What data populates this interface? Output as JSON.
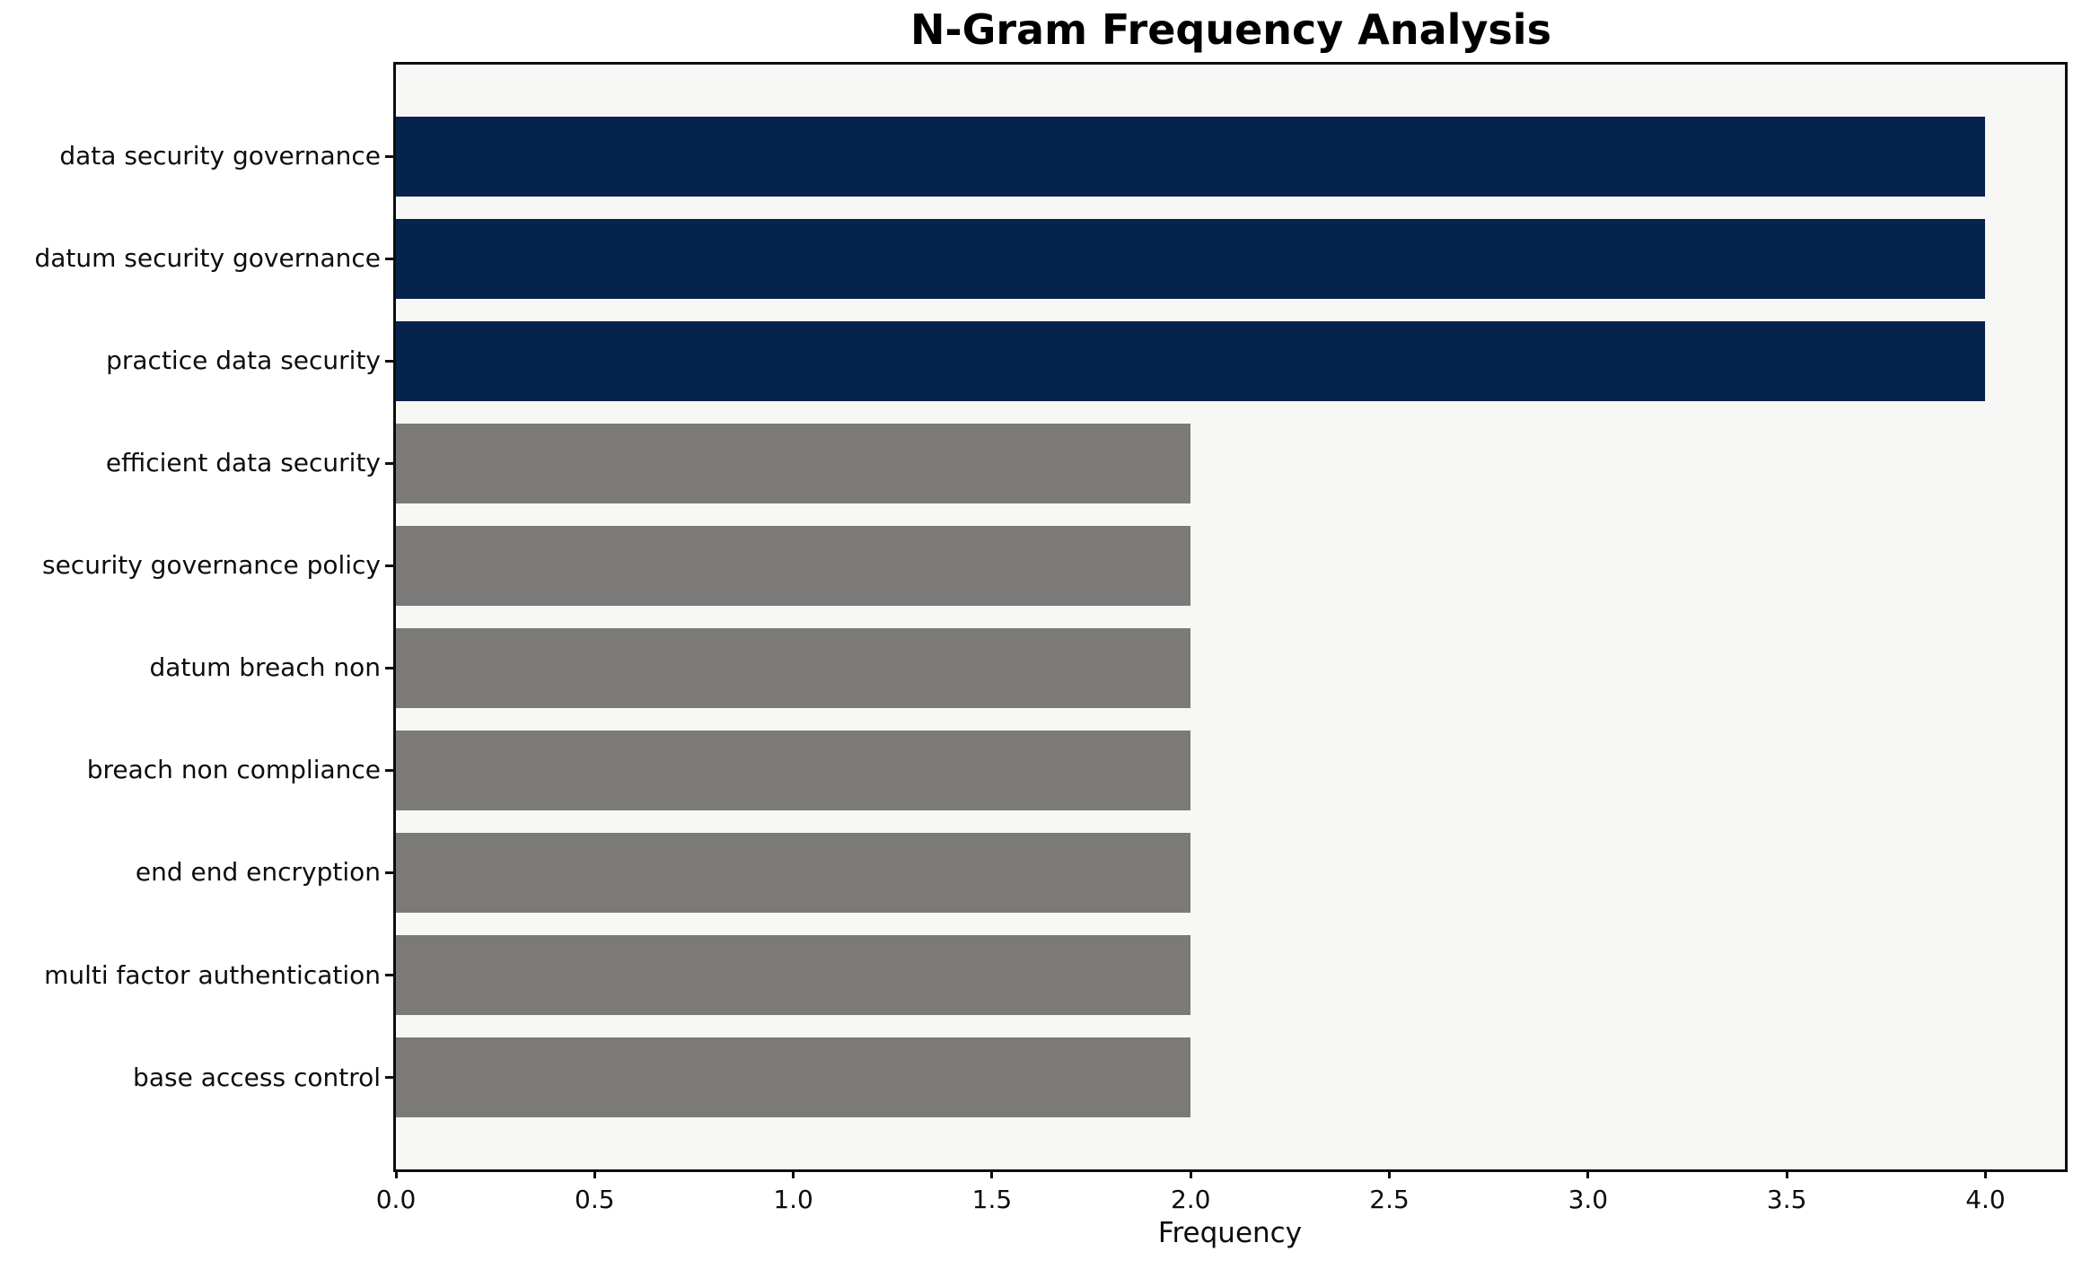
{
  "chart_data": {
    "type": "bar",
    "orientation": "horizontal",
    "title": "N-Gram Frequency Analysis",
    "xlabel": "Frequency",
    "ylabel": "",
    "categories": [
      "data security governance",
      "datum security governance",
      "practice data security",
      "efficient data security",
      "security governance policy",
      "datum breach non",
      "breach non compliance",
      "end end encryption",
      "multi factor authentication",
      "base access control"
    ],
    "values": [
      4,
      4,
      4,
      2,
      2,
      2,
      2,
      2,
      2,
      2
    ],
    "bar_colors": [
      "#06234d",
      "#06234d",
      "#06234d",
      "#7c7a78",
      "#7c7a78",
      "#7c7a78",
      "#7c7a78",
      "#7c7a78",
      "#7c7a78",
      "#7c7a78"
    ],
    "xlim": [
      0,
      4.2
    ],
    "xticks": [
      0.0,
      0.5,
      1.0,
      1.5,
      2.0,
      2.5,
      3.0,
      3.5,
      4.0
    ],
    "xtick_labels": [
      "0.0",
      "0.5",
      "1.0",
      "1.5",
      "2.0",
      "2.5",
      "3.0",
      "3.5",
      "4.0"
    ],
    "grid": false,
    "legend": null,
    "colors": {
      "highlight_bar": "#06234d",
      "default_bar": "#7c7a78",
      "plot_background": "#f7f7f6",
      "figure_background": "#ffffff",
      "axis": "#0d0d0d"
    }
  }
}
